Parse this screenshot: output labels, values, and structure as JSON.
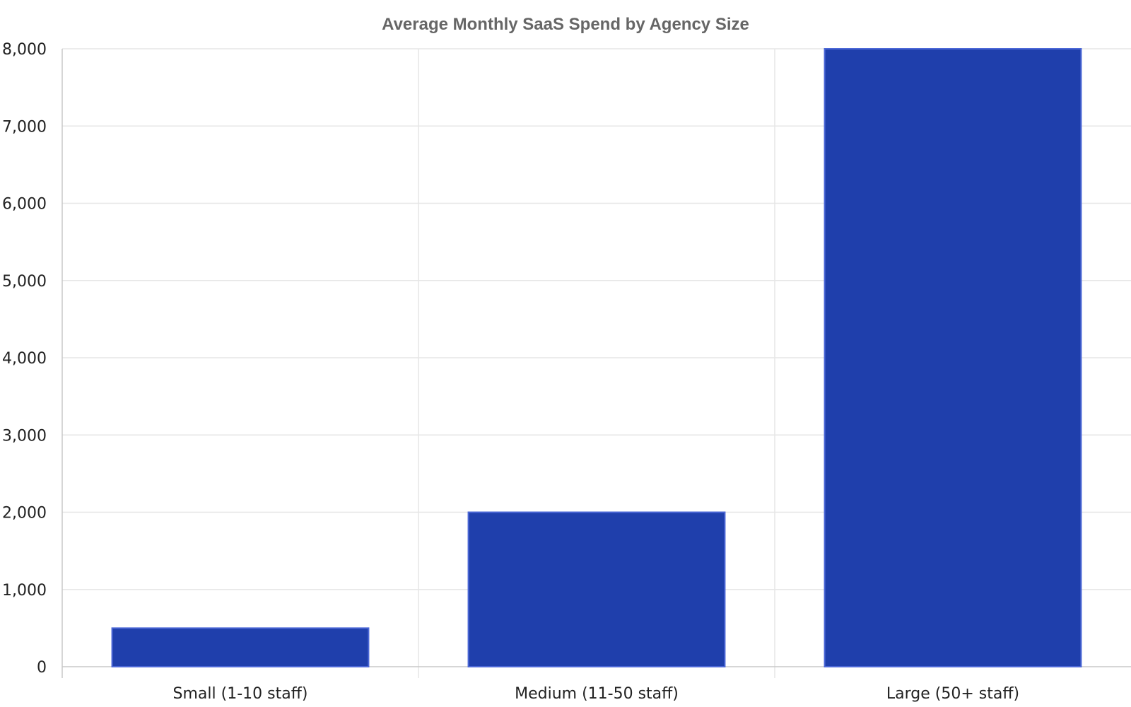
{
  "chart_data": {
    "type": "bar",
    "title": "Average Monthly SaaS Spend by Agency Size",
    "xlabel": "",
    "ylabel": "",
    "categories": [
      "Small (1-10 staff)",
      "Medium (11-50 staff)",
      "Large (50+ staff)"
    ],
    "values": [
      500,
      2000,
      8000
    ],
    "ylim": [
      0,
      8000
    ],
    "yticks": [
      0,
      1000,
      2000,
      3000,
      4000,
      5000,
      6000,
      7000,
      8000
    ],
    "ytick_labels": [
      "0",
      "1,000",
      "2,000",
      "3,000",
      "4,000",
      "5,000",
      "6,000",
      "7,000",
      "8,000"
    ],
    "grid": true,
    "legend": "none",
    "colors": {
      "bar_fill": "#1f3fac",
      "bar_edge": "#4c68d7",
      "grid": "#e6e6e6",
      "axis": "#c8c8c8",
      "title": "#666666",
      "tick_text": "#222222"
    }
  }
}
